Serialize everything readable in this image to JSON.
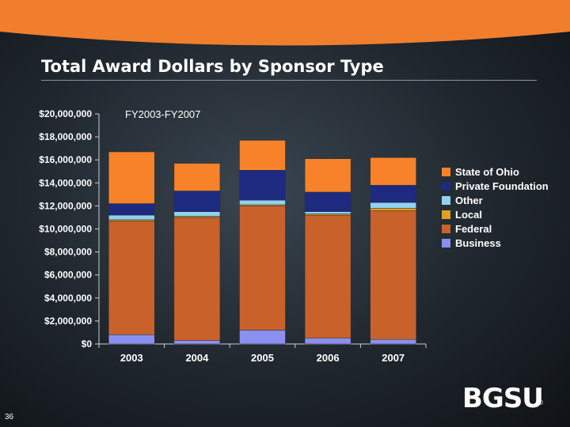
{
  "slide_number": "36",
  "logo_text": "BGSU",
  "logo_reg": "®",
  "colors": {
    "background": "#222a31",
    "band": "#f07e2c"
  },
  "chart_data": {
    "type": "bar",
    "stacked": true,
    "title": "Total Award Dollars by Sponsor Type",
    "subtitle": "FY2003-FY2007",
    "categories": [
      "2003",
      "2004",
      "2005",
      "2006",
      "2007"
    ],
    "ylim": [
      0,
      20000000
    ],
    "y_tick_labels": [
      "$0",
      "$2,000,000",
      "$4,000,000",
      "$6,000,000",
      "$8,000,000",
      "$10,000,000",
      "$12,000,000",
      "$14,000,000",
      "$16,000,000",
      "$18,000,000",
      "$20,000,000"
    ],
    "legend_position": "right",
    "series": [
      {
        "name": "Business",
        "color": "#8a8ff0",
        "values": [
          800000,
          300000,
          1200000,
          500000,
          400000
        ]
      },
      {
        "name": "Federal",
        "color": "#c8622a",
        "values": [
          9900000,
          10700000,
          10800000,
          10700000,
          11200000
        ]
      },
      {
        "name": "Local",
        "color": "#e0a020",
        "values": [
          100000,
          100000,
          100000,
          100000,
          200000
        ]
      },
      {
        "name": "Other",
        "color": "#8fd3f0",
        "values": [
          400000,
          400000,
          400000,
          200000,
          500000
        ]
      },
      {
        "name": "Private Foundation",
        "color": "#1e2a80",
        "values": [
          1000000,
          1800000,
          2600000,
          1700000,
          1500000
        ]
      },
      {
        "name": "State of Ohio",
        "color": "#f7822a",
        "values": [
          4500000,
          2400000,
          2600000,
          2900000,
          2400000
        ]
      }
    ],
    "legend_order": [
      "State of Ohio",
      "Private Foundation",
      "Other",
      "Local",
      "Federal",
      "Business"
    ]
  }
}
